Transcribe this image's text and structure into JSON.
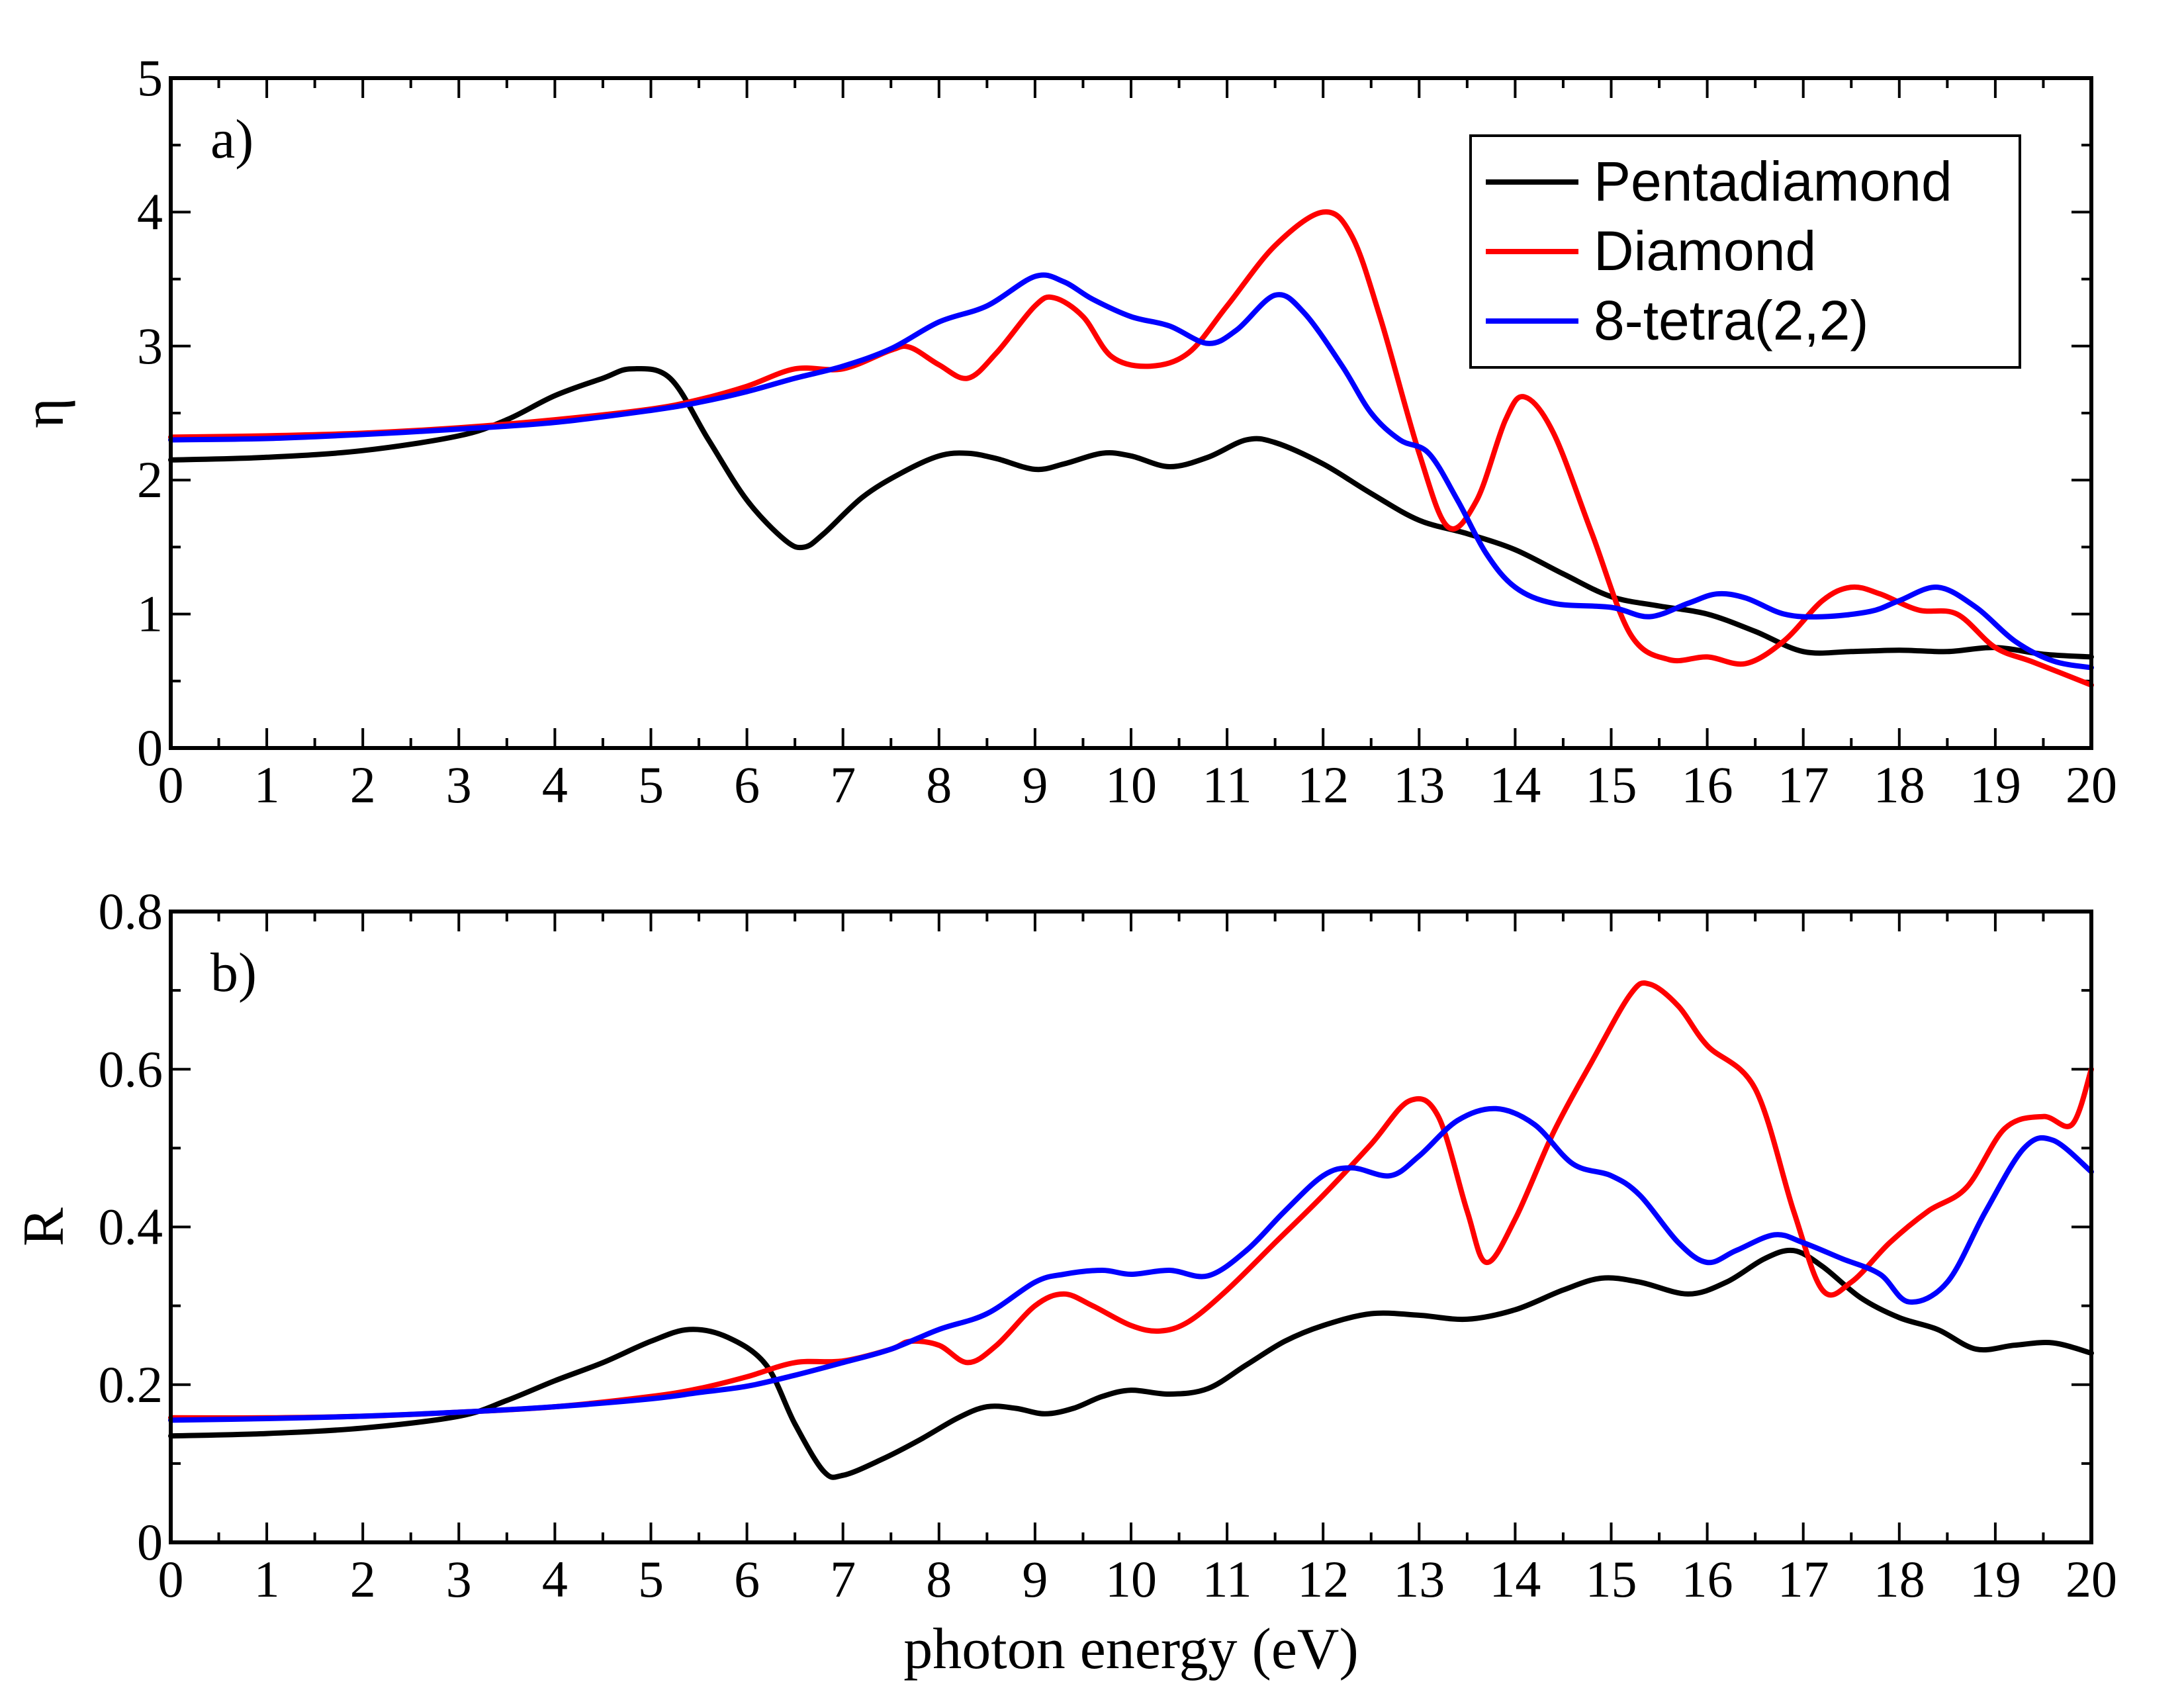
{
  "chart_data": [
    {
      "type": "line",
      "panel_label": "a)",
      "xlabel": "",
      "ylabel": "η",
      "xlim": [
        0,
        20
      ],
      "ylim": [
        0,
        5
      ],
      "xticks": [
        0,
        1,
        2,
        3,
        4,
        5,
        6,
        7,
        8,
        9,
        10,
        11,
        12,
        13,
        14,
        15,
        16,
        17,
        18,
        19,
        20
      ],
      "xtick_labels": [
        "0",
        "1",
        "2",
        "3",
        "4",
        "5",
        "6",
        "7",
        "8",
        "9",
        "10",
        "11",
        "12",
        "13",
        "14",
        "15",
        "16",
        "17",
        "18",
        "19",
        "20"
      ],
      "yticks": [
        0,
        1,
        2,
        3,
        4,
        5
      ],
      "ytick_labels": [
        "0",
        "1",
        "2",
        "3",
        "4",
        "5"
      ],
      "legend_position": "top-right",
      "legend": [
        "Pentadiamond",
        "Diamond",
        "8-tetra(2,2)"
      ],
      "series": [
        {
          "name": "Pentadiamond",
          "color": "#000000",
          "x": [
            0,
            1,
            2,
            3,
            3.5,
            4,
            4.5,
            4.8,
            5.2,
            5.6,
            6.0,
            6.4,
            6.6,
            6.8,
            7.2,
            7.6,
            8.0,
            8.3,
            8.6,
            9.0,
            9.3,
            9.7,
            10.0,
            10.4,
            10.8,
            11.2,
            11.5,
            12.0,
            12.5,
            13.0,
            13.5,
            14.0,
            14.5,
            15.0,
            15.5,
            16.0,
            16.5,
            17.0,
            17.5,
            18.0,
            18.5,
            19.0,
            19.5,
            20.0
          ],
          "y": [
            2.15,
            2.17,
            2.22,
            2.33,
            2.45,
            2.63,
            2.76,
            2.83,
            2.76,
            2.3,
            1.85,
            1.55,
            1.5,
            1.6,
            1.87,
            2.05,
            2.18,
            2.2,
            2.16,
            2.08,
            2.12,
            2.2,
            2.18,
            2.1,
            2.17,
            2.3,
            2.28,
            2.12,
            1.9,
            1.7,
            1.6,
            1.48,
            1.3,
            1.13,
            1.06,
            1.0,
            0.87,
            0.72,
            0.72,
            0.73,
            0.72,
            0.75,
            0.7,
            0.68
          ]
        },
        {
          "name": "Diamond",
          "color": "#ff0000",
          "x": [
            0,
            1,
            2,
            3,
            4,
            5,
            5.5,
            6.0,
            6.5,
            7.0,
            7.5,
            7.7,
            8.0,
            8.3,
            8.6,
            9.0,
            9.2,
            9.5,
            9.8,
            10.2,
            10.6,
            11.0,
            11.5,
            12.0,
            12.3,
            12.6,
            13.0,
            13.3,
            13.6,
            13.9,
            14.1,
            14.4,
            14.8,
            15.2,
            15.6,
            16.0,
            16.4,
            16.8,
            17.2,
            17.5,
            17.8,
            18.2,
            18.6,
            19.0,
            19.4,
            20.0
          ],
          "y": [
            2.32,
            2.33,
            2.35,
            2.39,
            2.45,
            2.53,
            2.6,
            2.7,
            2.83,
            2.83,
            2.97,
            2.99,
            2.86,
            2.76,
            2.95,
            3.3,
            3.36,
            3.22,
            2.92,
            2.85,
            2.95,
            3.3,
            3.75,
            4.0,
            3.82,
            3.2,
            2.2,
            1.65,
            1.85,
            2.45,
            2.62,
            2.35,
            1.6,
            0.85,
            0.66,
            0.68,
            0.63,
            0.8,
            1.1,
            1.2,
            1.15,
            1.03,
            1.0,
            0.75,
            0.64,
            0.47
          ]
        },
        {
          "name": "8-tetra(2,2)",
          "color": "#0000ff",
          "x": [
            0,
            1,
            2,
            3,
            4,
            5,
            5.5,
            6.0,
            6.5,
            7.0,
            7.5,
            8.0,
            8.5,
            9.0,
            9.3,
            9.6,
            10.0,
            10.4,
            10.8,
            11.1,
            11.5,
            11.8,
            12.2,
            12.5,
            12.8,
            13.1,
            13.4,
            13.7,
            14.0,
            14.4,
            15.0,
            15.4,
            15.8,
            16.1,
            16.4,
            16.8,
            17.2,
            17.7,
            18.0,
            18.4,
            18.8,
            19.2,
            19.6,
            20.0
          ],
          "y": [
            2.3,
            2.31,
            2.34,
            2.38,
            2.43,
            2.52,
            2.58,
            2.66,
            2.76,
            2.85,
            2.98,
            3.18,
            3.3,
            3.52,
            3.48,
            3.35,
            3.22,
            3.15,
            3.02,
            3.12,
            3.38,
            3.25,
            2.85,
            2.5,
            2.3,
            2.2,
            1.85,
            1.45,
            1.2,
            1.08,
            1.05,
            0.98,
            1.08,
            1.15,
            1.12,
            1.0,
            0.98,
            1.02,
            1.1,
            1.2,
            1.05,
            0.8,
            0.65,
            0.6
          ]
        }
      ]
    },
    {
      "type": "line",
      "panel_label": "b)",
      "xlabel": "photon energy (eV)",
      "ylabel": "R",
      "xlim": [
        0,
        20
      ],
      "ylim": [
        0,
        0.8
      ],
      "xticks": [
        0,
        1,
        2,
        3,
        4,
        5,
        6,
        7,
        8,
        9,
        10,
        11,
        12,
        13,
        14,
        15,
        16,
        17,
        18,
        19,
        20
      ],
      "xtick_labels": [
        "0",
        "1",
        "2",
        "3",
        "4",
        "5",
        "6",
        "7",
        "8",
        "9",
        "10",
        "11",
        "12",
        "13",
        "14",
        "15",
        "16",
        "17",
        "18",
        "19",
        "20"
      ],
      "yticks": [
        0,
        0.2,
        0.4,
        0.6,
        0.8
      ],
      "ytick_labels": [
        "0",
        "0.2",
        "0.4",
        "0.6",
        "0.8"
      ],
      "series": [
        {
          "name": "Pentadiamond",
          "color": "#000000",
          "x": [
            0,
            1,
            2,
            3,
            3.5,
            4,
            4.5,
            5.0,
            5.4,
            5.8,
            6.2,
            6.5,
            6.8,
            7.0,
            7.4,
            7.8,
            8.2,
            8.5,
            8.8,
            9.1,
            9.4,
            9.7,
            10.0,
            10.4,
            10.8,
            11.2,
            11.6,
            12.0,
            12.5,
            13.0,
            13.5,
            14.0,
            14.5,
            14.9,
            15.3,
            15.8,
            16.2,
            16.6,
            16.9,
            17.2,
            17.6,
            18.0,
            18.4,
            18.8,
            19.2,
            19.6,
            20.0
          ],
          "y": [
            0.135,
            0.138,
            0.145,
            0.16,
            0.18,
            0.205,
            0.228,
            0.255,
            0.27,
            0.26,
            0.225,
            0.15,
            0.09,
            0.085,
            0.105,
            0.13,
            0.158,
            0.172,
            0.17,
            0.163,
            0.17,
            0.185,
            0.193,
            0.188,
            0.195,
            0.225,
            0.255,
            0.275,
            0.29,
            0.288,
            0.283,
            0.295,
            0.32,
            0.335,
            0.33,
            0.315,
            0.33,
            0.36,
            0.37,
            0.35,
            0.31,
            0.285,
            0.27,
            0.245,
            0.25,
            0.253,
            0.24
          ]
        },
        {
          "name": "Diamond",
          "color": "#ff0000",
          "x": [
            0,
            1,
            2,
            3,
            4,
            5,
            5.5,
            6.0,
            6.5,
            7.0,
            7.5,
            7.7,
            8.0,
            8.3,
            8.6,
            9.0,
            9.3,
            9.6,
            10.0,
            10.3,
            10.6,
            11.0,
            11.5,
            12.0,
            12.5,
            12.9,
            13.2,
            13.5,
            13.7,
            14.0,
            14.4,
            14.8,
            15.2,
            15.4,
            15.7,
            16.0,
            16.5,
            16.9,
            17.2,
            17.5,
            17.9,
            18.3,
            18.7,
            19.1,
            19.5,
            19.8,
            20.0
          ],
          "y": [
            0.158,
            0.158,
            0.16,
            0.165,
            0.172,
            0.185,
            0.195,
            0.21,
            0.228,
            0.23,
            0.245,
            0.255,
            0.25,
            0.228,
            0.25,
            0.3,
            0.315,
            0.3,
            0.275,
            0.268,
            0.28,
            0.32,
            0.38,
            0.44,
            0.505,
            0.56,
            0.54,
            0.42,
            0.355,
            0.41,
            0.52,
            0.61,
            0.695,
            0.708,
            0.68,
            0.63,
            0.575,
            0.42,
            0.32,
            0.33,
            0.38,
            0.42,
            0.45,
            0.525,
            0.54,
            0.53,
            0.6
          ]
        },
        {
          "name": "8-tetra(2,2)",
          "color": "#0000ff",
          "x": [
            0,
            1,
            2,
            3,
            4,
            5,
            5.5,
            6.0,
            6.5,
            7.0,
            7.5,
            8.0,
            8.5,
            9.0,
            9.3,
            9.7,
            10.0,
            10.4,
            10.8,
            11.2,
            11.6,
            12.0,
            12.3,
            12.7,
            13.0,
            13.4,
            13.8,
            14.2,
            14.6,
            15.0,
            15.3,
            15.7,
            16.0,
            16.3,
            16.7,
            17.0,
            17.4,
            17.8,
            18.1,
            18.5,
            18.9,
            19.3,
            19.6,
            20.0
          ],
          "y": [
            0.155,
            0.157,
            0.16,
            0.165,
            0.172,
            0.182,
            0.19,
            0.198,
            0.212,
            0.228,
            0.245,
            0.27,
            0.29,
            0.33,
            0.34,
            0.345,
            0.34,
            0.345,
            0.338,
            0.37,
            0.42,
            0.465,
            0.475,
            0.465,
            0.49,
            0.535,
            0.55,
            0.53,
            0.48,
            0.465,
            0.44,
            0.38,
            0.355,
            0.37,
            0.39,
            0.38,
            0.36,
            0.34,
            0.305,
            0.33,
            0.42,
            0.5,
            0.51,
            0.47
          ]
        }
      ]
    }
  ]
}
